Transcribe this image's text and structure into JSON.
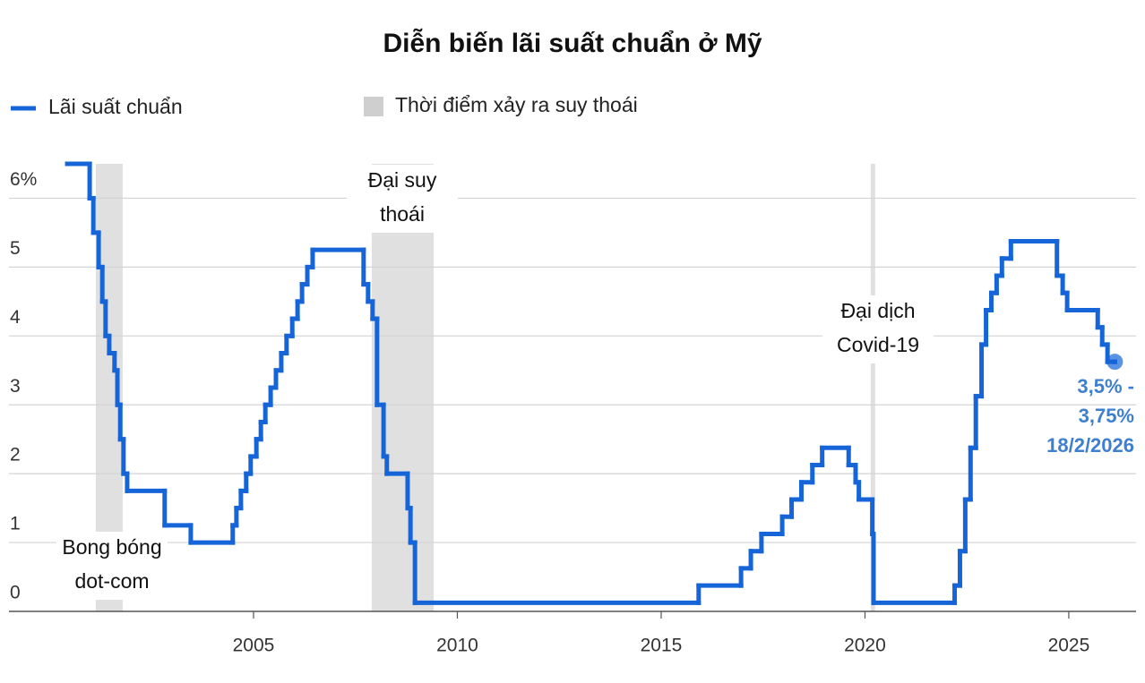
{
  "chart_data": {
    "type": "step-line",
    "title": "Diễn biến lãi suất chuẩn ở Mỹ",
    "xlim": [
      1999.0,
      2026.65
    ],
    "xticks": [
      2005,
      2010,
      2015,
      2020,
      2025
    ],
    "ylim": [
      0,
      6.5
    ],
    "yticks": [
      0,
      1,
      2,
      3,
      4,
      5,
      {
        "value": 6,
        "label": "6%"
      }
    ],
    "grid": true,
    "series": [
      {
        "name": "Lãi suất chuẩn",
        "color": "#1565d8",
        "x": [
          2000.43,
          2000.98,
          2001.07,
          2001.2,
          2001.29,
          2001.37,
          2001.46,
          2001.59,
          2001.66,
          2001.73,
          2001.81,
          2001.9,
          2002.82,
          2003.46,
          2004.49,
          2004.58,
          2004.69,
          2004.82,
          2004.93,
          2005.07,
          2005.18,
          2005.29,
          2005.42,
          2005.55,
          2005.68,
          2005.81,
          2005.95,
          2006.08,
          2006.19,
          2006.32,
          2006.45,
          2007.7,
          2007.81,
          2007.92,
          2008.03,
          2008.19,
          2008.27,
          2008.78,
          2008.85,
          2008.96,
          2015.92,
          2016.96,
          2017.2,
          2017.46,
          2017.97,
          2018.2,
          2018.44,
          2018.71,
          2018.95,
          2019.6,
          2019.77,
          2019.85,
          2020.18,
          2020.21,
          2022.2,
          2022.33,
          2022.46,
          2022.59,
          2022.72,
          2022.86,
          2022.97,
          2023.1,
          2023.23,
          2023.36,
          2023.58,
          2024.71,
          2024.85,
          2024.96,
          2025.71,
          2025.82,
          2025.95,
          2026.13
        ],
        "values": [
          6.5,
          6.0,
          5.5,
          5.0,
          4.5,
          4.0,
          3.75,
          3.5,
          3.0,
          2.5,
          2.0,
          1.75,
          1.25,
          1.0,
          1.25,
          1.5,
          1.75,
          2.0,
          2.25,
          2.5,
          2.75,
          3.0,
          3.25,
          3.5,
          3.75,
          4.0,
          4.25,
          4.5,
          4.75,
          5.0,
          5.25,
          4.75,
          4.5,
          4.25,
          3.0,
          2.25,
          2.0,
          1.5,
          1.0,
          0.125,
          0.375,
          0.625,
          0.875,
          1.125,
          1.375,
          1.625,
          1.875,
          2.125,
          2.375,
          2.125,
          1.875,
          1.625,
          1.125,
          0.125,
          0.375,
          0.875,
          1.625,
          2.375,
          3.125,
          3.875,
          4.375,
          4.625,
          4.875,
          5.125,
          5.375,
          4.875,
          4.625,
          4.375,
          4.125,
          3.875,
          3.625,
          3.625
        ]
      }
    ],
    "shaded_regions": {
      "name": "Thời điểm xảy ra suy thoái",
      "color": "#e0e0e0",
      "ranges": [
        [
          2001.13,
          2001.79
        ],
        [
          2007.9,
          2009.42
        ],
        [
          2020.14,
          2020.25
        ]
      ],
      "labels": [
        [
          "Bong bóng",
          "dot-com"
        ],
        [
          "Đại suy",
          "thoái"
        ],
        [
          "Đại dịch",
          "Covid-19"
        ]
      ]
    },
    "end_label": [
      "3,5% -",
      "3,75%",
      "18/2/2026"
    ]
  }
}
